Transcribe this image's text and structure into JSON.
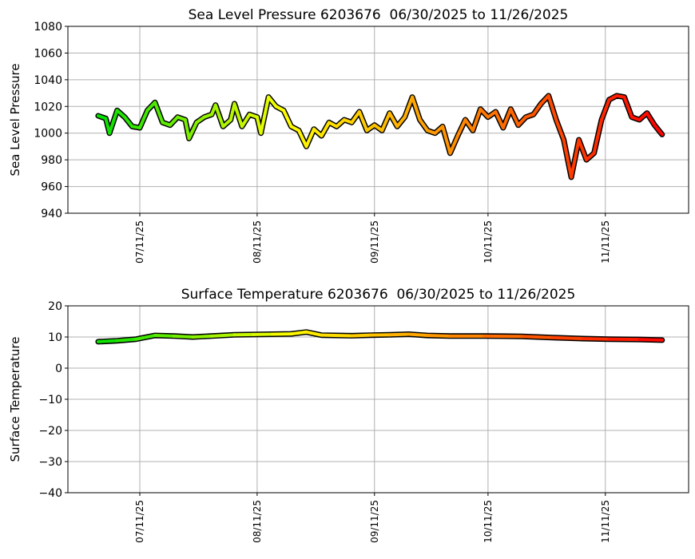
{
  "chart_data": [
    {
      "type": "line",
      "title": "Sea Level Pressure 6203676  06/30/2025 to 11/26/2025",
      "y_label": "Sea Level Pressure",
      "x": [
        "06/30/25",
        "07/02/25",
        "07/03/25",
        "07/05/25",
        "07/07/25",
        "07/09/25",
        "07/11/25",
        "07/13/25",
        "07/15/25",
        "07/17/25",
        "07/19/25",
        "07/21/25",
        "07/23/25",
        "07/24/25",
        "07/26/25",
        "07/28/25",
        "07/30/25",
        "07/31/25",
        "08/02/25",
        "08/04/25",
        "08/05/25",
        "08/07/25",
        "08/09/25",
        "08/11/25",
        "08/12/25",
        "08/14/25",
        "08/16/25",
        "08/18/25",
        "08/20/25",
        "08/22/25",
        "08/24/25",
        "08/26/25",
        "08/28/25",
        "08/30/25",
        "09/01/25",
        "09/03/25",
        "09/05/25",
        "09/07/25",
        "09/09/25",
        "09/11/25",
        "09/13/25",
        "09/15/25",
        "09/17/25",
        "09/19/25",
        "09/21/25",
        "09/23/25",
        "09/25/25",
        "09/27/25",
        "09/29/25",
        "10/01/25",
        "10/03/25",
        "10/05/25",
        "10/07/25",
        "10/09/25",
        "10/11/25",
        "10/13/25",
        "10/15/25",
        "10/17/25",
        "10/19/25",
        "10/21/25",
        "10/23/25",
        "10/25/25",
        "10/27/25",
        "10/29/25",
        "10/31/25",
        "11/02/25",
        "11/04/25",
        "11/06/25",
        "11/08/25",
        "11/10/25",
        "11/12/25",
        "11/14/25",
        "11/16/25",
        "11/18/25",
        "11/20/25",
        "11/22/25",
        "11/24/25",
        "11/26/25"
      ],
      "series": [
        {
          "values": [
            1013,
            1011,
            1000,
            1017,
            1012,
            1005,
            1004,
            1017,
            1023,
            1008,
            1006,
            1012,
            1010,
            996,
            1008,
            1012,
            1014,
            1021,
            1005,
            1010,
            1022,
            1005,
            1014,
            1012,
            1000,
            1027,
            1020,
            1017,
            1005,
            1002,
            990,
            1003,
            998,
            1008,
            1005,
            1010,
            1008,
            1016,
            1002,
            1006,
            1002,
            1015,
            1005,
            1012,
            1027,
            1010,
            1002,
            1000,
            1005,
            985,
            998,
            1010,
            1002,
            1018,
            1012,
            1016,
            1004,
            1018,
            1006,
            1012,
            1014,
            1022,
            1028,
            1010,
            995,
            967,
            995,
            980,
            985,
            1010,
            1025,
            1028,
            1027,
            1012,
            1010,
            1015,
            1006,
            999
          ]
        }
      ],
      "colormap": [
        "#00e000",
        "#ffff00",
        "#ff8000",
        "#ff0000"
      ],
      "xlim": [
        "06/22/25",
        "12/03/25"
      ],
      "xticks": [
        "07/11/25",
        "08/11/25",
        "09/11/25",
        "10/11/25",
        "11/11/25"
      ],
      "ylim": [
        940,
        1080
      ],
      "yticks": [
        940,
        960,
        980,
        1000,
        1020,
        1040,
        1060,
        1080
      ],
      "grid": true
    },
    {
      "type": "line",
      "title": "Surface Temperature 6203676  06/30/2025 to 11/26/2025",
      "y_label": "Surface Temperature",
      "x": [
        "06/30/25",
        "07/05/25",
        "07/10/25",
        "07/15/25",
        "07/20/25",
        "07/25/25",
        "07/30/25",
        "08/05/25",
        "08/10/25",
        "08/15/25",
        "08/20/25",
        "08/24/25",
        "08/28/25",
        "09/05/25",
        "09/10/25",
        "09/15/25",
        "09/20/25",
        "09/25/25",
        "10/01/25",
        "10/10/25",
        "10/20/25",
        "10/28/25",
        "11/05/25",
        "11/12/25",
        "11/20/25",
        "11/26/25"
      ],
      "series": [
        {
          "values": [
            8.5,
            8.8,
            9.3,
            10.5,
            10.3,
            10.0,
            10.3,
            10.7,
            10.8,
            10.9,
            11.0,
            11.6,
            10.6,
            10.4,
            10.6,
            10.7,
            10.9,
            10.5,
            10.3,
            10.3,
            10.2,
            9.8,
            9.5,
            9.3,
            9.2,
            9.0
          ]
        }
      ],
      "colormap": [
        "#00e000",
        "#ffff00",
        "#ff8000",
        "#ff0000"
      ],
      "xlim": [
        "06/22/25",
        "12/03/25"
      ],
      "xticks": [
        "07/11/25",
        "08/11/25",
        "09/11/25",
        "10/11/25",
        "11/11/25"
      ],
      "ylim": [
        -40,
        20
      ],
      "yticks": [
        {
          "value": -40,
          "label": "−40"
        },
        {
          "value": -30,
          "label": "−30"
        },
        {
          "value": -20,
          "label": "−20"
        },
        {
          "value": -10,
          "label": "−10"
        },
        0,
        10,
        20
      ],
      "grid": true
    }
  ]
}
